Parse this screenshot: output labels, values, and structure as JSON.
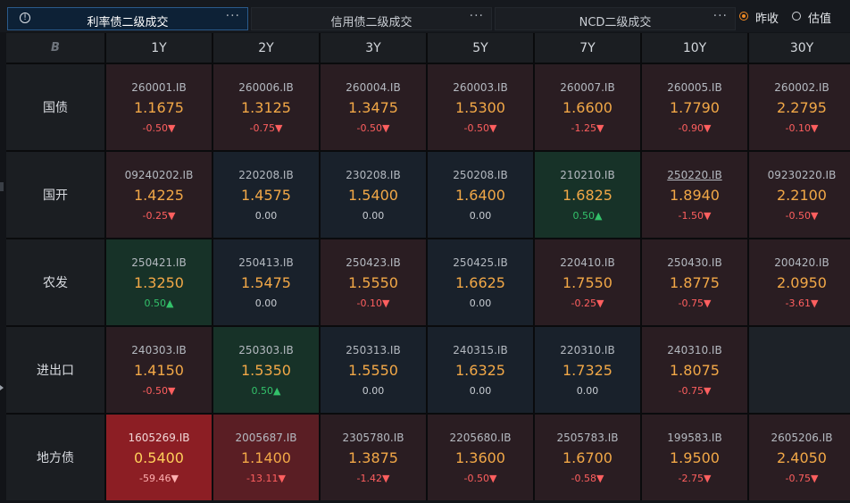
{
  "tabs": [
    {
      "label": "利率债二级成交",
      "more": "···",
      "active": true
    },
    {
      "label": "信用债二级成交",
      "more": "···",
      "active": false
    },
    {
      "label": "NCD二级成交",
      "more": "···",
      "active": false
    }
  ],
  "info_icon": "!",
  "radios": [
    {
      "label": "昨收",
      "selected": true
    },
    {
      "label": "估值",
      "selected": false
    }
  ],
  "table": {
    "corner_logo": "B",
    "columns": [
      "1Y",
      "2Y",
      "3Y",
      "5Y",
      "7Y",
      "10Y",
      "30Y"
    ],
    "rows": [
      {
        "label": "国债",
        "cells": [
          {
            "code": "260001.IB",
            "yield": "1.1675",
            "change": "-0.50▼",
            "dir": "up"
          },
          {
            "code": "260006.IB",
            "yield": "1.3125",
            "change": "-0.75▼",
            "dir": "up"
          },
          {
            "code": "260004.IB",
            "yield": "1.3475",
            "change": "-0.50▼",
            "dir": "up"
          },
          {
            "code": "260003.IB",
            "yield": "1.5300",
            "change": "-0.50▼",
            "dir": "up"
          },
          {
            "code": "260007.IB",
            "yield": "1.6600",
            "change": "-1.25▼",
            "dir": "up"
          },
          {
            "code": "260005.IB",
            "yield": "1.7790",
            "change": "-0.90▼",
            "dir": "up"
          },
          {
            "code": "260002.IB",
            "yield": "2.2795",
            "change": "-0.10▼",
            "dir": "up"
          }
        ]
      },
      {
        "label": "国开",
        "cells": [
          {
            "code": "09240202.IB",
            "yield": "1.4225",
            "change": "-0.25▼",
            "dir": "up"
          },
          {
            "code": "220208.IB",
            "yield": "1.4575",
            "change": "0.00",
            "dir": "flat"
          },
          {
            "code": "230208.IB",
            "yield": "1.5400",
            "change": "0.00",
            "dir": "flat"
          },
          {
            "code": "250208.IB",
            "yield": "1.6400",
            "change": "0.00",
            "dir": "flat"
          },
          {
            "code": "210210.IB",
            "yield": "1.6825",
            "change": "0.50▲",
            "dir": "dn"
          },
          {
            "code": "250220.IB",
            "yield": "1.8940",
            "change": "-1.50▼",
            "dir": "up",
            "underline": true
          },
          {
            "code": "09230220.IB",
            "yield": "2.2100",
            "change": "-0.50▼",
            "dir": "up"
          }
        ]
      },
      {
        "label": "农发",
        "cells": [
          {
            "code": "250421.IB",
            "yield": "1.3250",
            "change": "0.50▲",
            "dir": "dn"
          },
          {
            "code": "250413.IB",
            "yield": "1.5475",
            "change": "0.00",
            "dir": "flat"
          },
          {
            "code": "250423.IB",
            "yield": "1.5550",
            "change": "-0.10▼",
            "dir": "up"
          },
          {
            "code": "250425.IB",
            "yield": "1.6625",
            "change": "0.00",
            "dir": "flat"
          },
          {
            "code": "220410.IB",
            "yield": "1.7550",
            "change": "-0.25▼",
            "dir": "up"
          },
          {
            "code": "250430.IB",
            "yield": "1.8775",
            "change": "-0.75▼",
            "dir": "up"
          },
          {
            "code": "200420.IB",
            "yield": "2.0950",
            "change": "-3.61▼",
            "dir": "up"
          }
        ]
      },
      {
        "label": "进出口",
        "cells": [
          {
            "code": "240303.IB",
            "yield": "1.4150",
            "change": "-0.50▼",
            "dir": "up"
          },
          {
            "code": "250303.IB",
            "yield": "1.5350",
            "change": "0.50▲",
            "dir": "dn"
          },
          {
            "code": "250313.IB",
            "yield": "1.5550",
            "change": "0.00",
            "dir": "flat"
          },
          {
            "code": "240315.IB",
            "yield": "1.6325",
            "change": "0.00",
            "dir": "flat"
          },
          {
            "code": "220310.IB",
            "yield": "1.7325",
            "change": "0.00",
            "dir": "flat"
          },
          {
            "code": "240310.IB",
            "yield": "1.8075",
            "change": "-0.75▼",
            "dir": "up"
          },
          {
            "empty": true
          }
        ]
      },
      {
        "label": "地方债",
        "cells": [
          {
            "code": "1605269.IB",
            "yield": "0.5400",
            "change": "-59.46▼",
            "dir": "up",
            "tone": "strong"
          },
          {
            "code": "2005687.IB",
            "yield": "1.1400",
            "change": "-13.11▼",
            "dir": "up",
            "tone": "mid"
          },
          {
            "code": "2305780.IB",
            "yield": "1.3875",
            "change": "-1.42▼",
            "dir": "up"
          },
          {
            "code": "2205680.IB",
            "yield": "1.3600",
            "change": "-0.50▼",
            "dir": "up"
          },
          {
            "code": "2505783.IB",
            "yield": "1.6700",
            "change": "-0.58▼",
            "dir": "up"
          },
          {
            "code": "199583.IB",
            "yield": "1.9500",
            "change": "-2.75▼",
            "dir": "up"
          },
          {
            "code": "2605206.IB",
            "yield": "2.4050",
            "change": "-0.75▼",
            "dir": "up"
          }
        ]
      }
    ]
  }
}
